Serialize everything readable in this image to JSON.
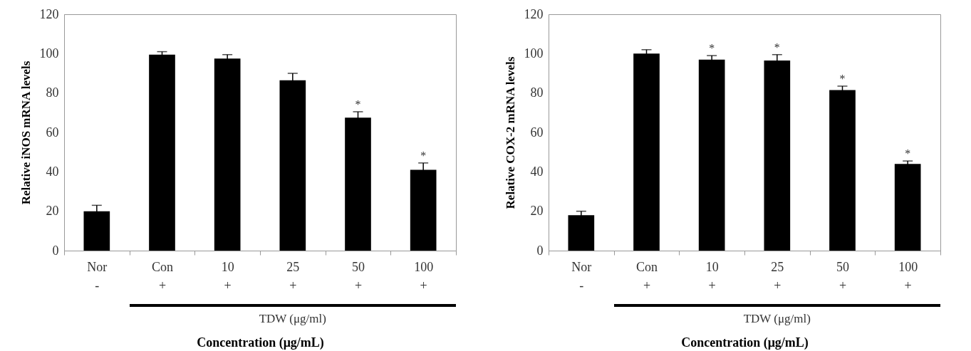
{
  "chart_data": [
    {
      "type": "bar",
      "categories": [
        "Nor\n-",
        "Con\n+",
        "10\n+",
        "25\n+",
        "50\n+",
        "100\n+"
      ],
      "values": [
        20,
        99.5,
        97.5,
        86.5,
        67.5,
        41
      ],
      "errors": [
        3,
        1.5,
        2,
        3.5,
        3,
        3.5
      ],
      "color": "#000000",
      "ylabel": "Relative iNOS mRNA levels",
      "xlabel": "Concentration  (μg/mL)",
      "ylim": [
        0,
        120
      ],
      "yticks": [
        0,
        20,
        40,
        60,
        80,
        100,
        120
      ],
      "grid": false,
      "annotations": [
        {
          "text": "*",
          "x": "50\n+",
          "y": 70.5
        },
        {
          "text": "*",
          "x": "100\n+",
          "y": 44.5
        },
        "TDW (μg/ml)"
      ]
    },
    {
      "type": "bar",
      "categories": [
        "Nor\n-",
        "Con\n+",
        "10\n+",
        "25\n+",
        "50\n+",
        "100\n+"
      ],
      "values": [
        18,
        100,
        97,
        96.5,
        81.5,
        44
      ],
      "errors": [
        2,
        2,
        2,
        3,
        2,
        1.5
      ],
      "color": "#000000",
      "ylabel": "Relative COX-2  mRNA levels",
      "xlabel": "Concentration  (μg/mL)",
      "ylim": [
        0,
        120
      ],
      "yticks": [
        0,
        20,
        40,
        60,
        80,
        100,
        120
      ],
      "grid": false,
      "annotations": [
        {
          "text": "*",
          "x": "10\n+",
          "y": 99
        },
        {
          "text": "*",
          "x": "25\n+",
          "y": 99.5
        },
        {
          "text": "*",
          "x": "50\n+",
          "y": 83.5
        },
        {
          "text": "*",
          "x": "100\n+",
          "y": 45.5
        },
        "TDW (μg/ml)"
      ]
    }
  ]
}
